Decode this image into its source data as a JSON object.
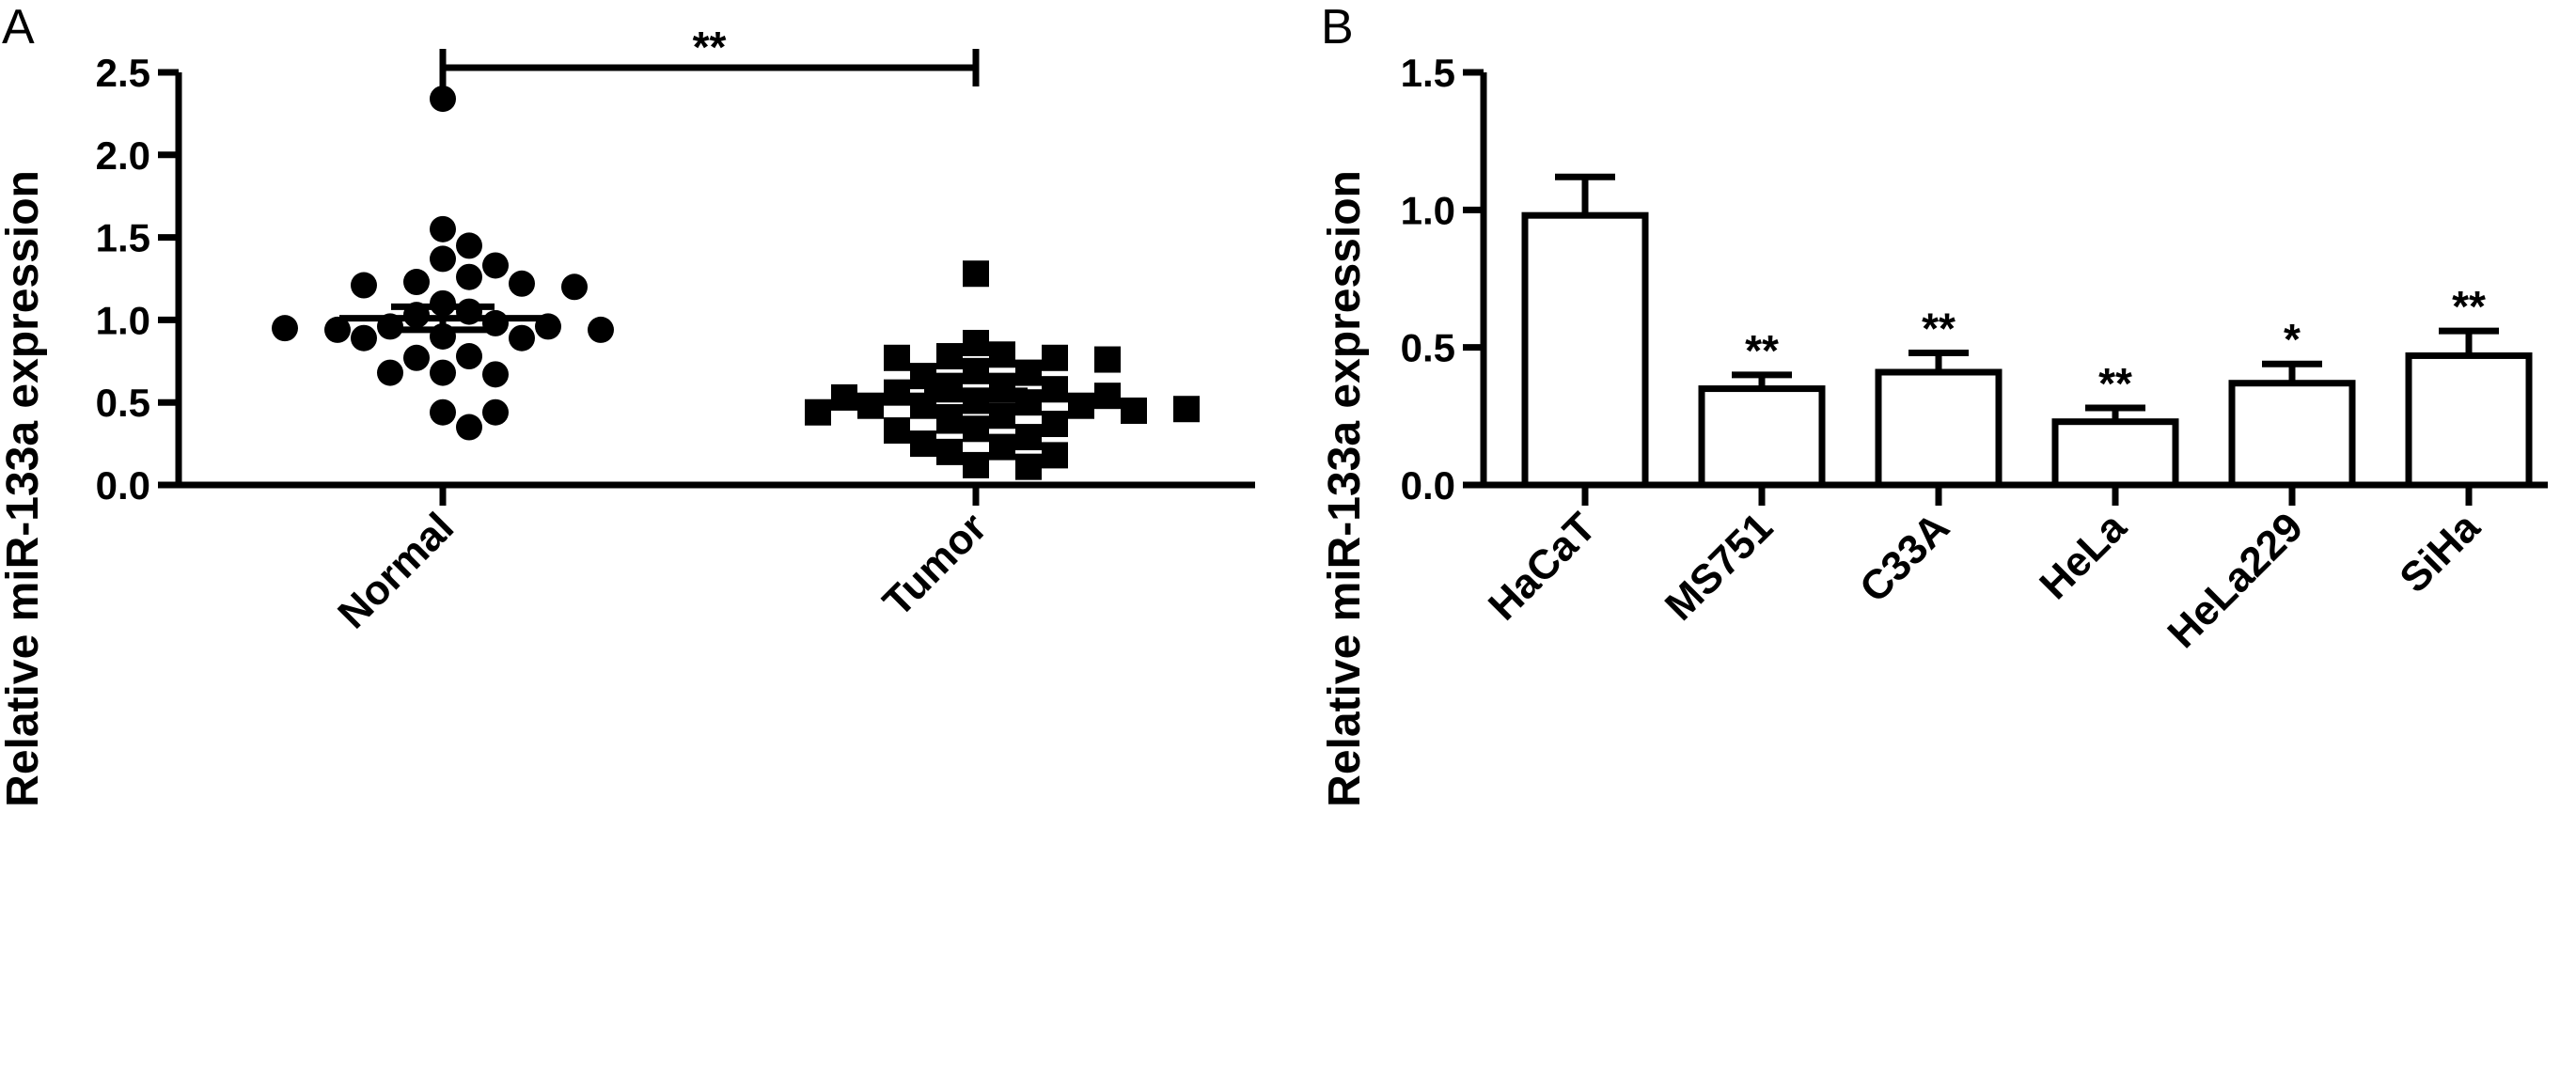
{
  "figure": {
    "background": "#ffffff",
    "ink": "#000000"
  },
  "panels": [
    {
      "label": "A"
    },
    {
      "label": "B"
    }
  ],
  "chart_data": [
    {
      "type": "scatter",
      "panel": "A",
      "ylabel": "Relative miR-133a expression",
      "ylim": [
        0,
        2.5
      ],
      "yticks": [
        "0.0",
        "0.5",
        "1.0",
        "1.5",
        "2.0",
        "2.5"
      ],
      "yticks_values": [
        0,
        0.5,
        1.0,
        1.5,
        2.0,
        2.5
      ],
      "categories": [
        "Normal",
        "Tumor"
      ],
      "grid": false,
      "series": [
        {
          "category": "Normal",
          "marker": "circle",
          "mean": 1.01,
          "sem": [
            0.94,
            1.08
          ],
          "values": [
            2.34,
            1.55,
            1.45,
            1.37,
            1.33,
            1.26,
            1.23,
            1.22,
            1.21,
            1.2,
            1.1,
            1.05,
            1.03,
            0.98,
            0.96,
            0.96,
            0.94,
            0.94,
            0.95,
            0.9,
            0.89,
            0.89,
            0.78,
            0.77,
            0.68,
            0.67,
            0.68,
            0.44,
            0.44,
            0.35
          ]
        },
        {
          "category": "Tumor",
          "marker": "square",
          "mean": 0.52,
          "sem": [
            0.47,
            0.57
          ],
          "values": [
            1.28,
            0.86,
            0.79,
            0.78,
            0.77,
            0.77,
            0.76,
            0.69,
            0.68,
            0.66,
            0.6,
            0.6,
            0.58,
            0.56,
            0.54,
            0.53,
            0.51,
            0.5,
            0.48,
            0.48,
            0.48,
            0.45,
            0.44,
            0.42,
            0.39,
            0.37,
            0.34,
            0.33,
            0.29,
            0.25,
            0.23,
            0.2,
            0.18,
            0.12,
            0.11,
            0.46
          ]
        }
      ],
      "annotations": [
        {
          "text": "**",
          "between": [
            "Normal",
            "Tumor"
          ],
          "y": 2.5
        }
      ]
    },
    {
      "type": "bar",
      "panel": "B",
      "ylabel": "Relative miR-133a expression",
      "ylim": [
        0,
        1.5
      ],
      "yticks": [
        "0.0",
        "0.5",
        "1.0",
        "1.5"
      ],
      "yticks_values": [
        0,
        0.5,
        1.0,
        1.5
      ],
      "categories": [
        "HaCaT",
        "MS751",
        "C33A",
        "HeLa",
        "HeLa229",
        "SiHa"
      ],
      "values": [
        0.98,
        0.35,
        0.41,
        0.23,
        0.37,
        0.47
      ],
      "errors": [
        0.14,
        0.05,
        0.07,
        0.05,
        0.07,
        0.09
      ],
      "significance": [
        "",
        "**",
        "**",
        "**",
        "*",
        "**"
      ],
      "grid": false
    }
  ]
}
